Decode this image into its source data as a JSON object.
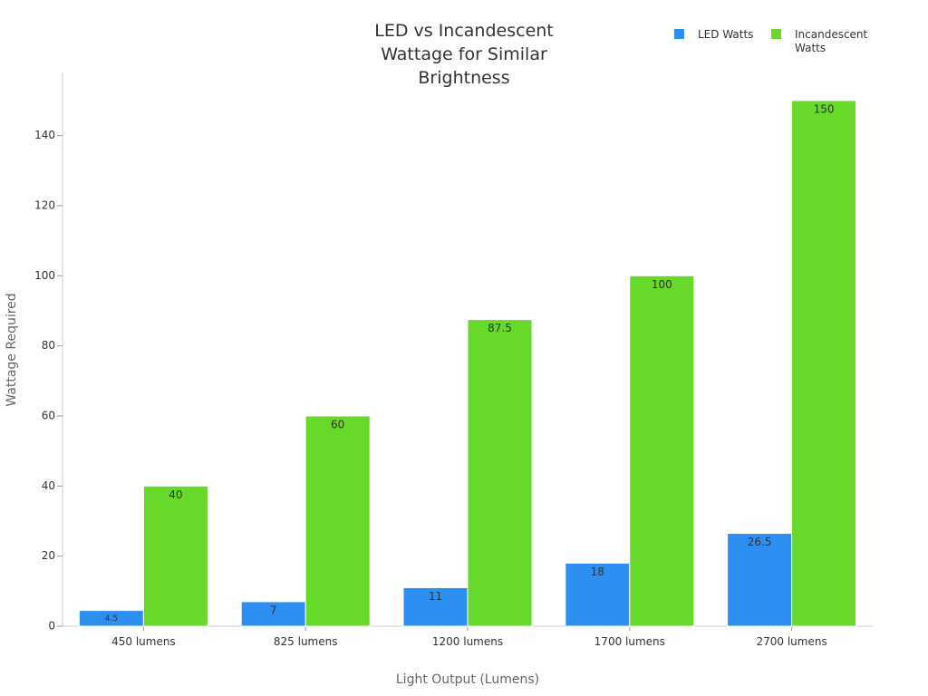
{
  "chart_data": {
    "type": "bar",
    "title": "LED vs Incandescent Wattage for Similar Brightness",
    "x_label": "Light Output (Lumens)",
    "y_label": "Wattage Required",
    "categories": [
      "450 lumens",
      "825 lumens",
      "1200 lumens",
      "1700 lumens",
      "2700 lumens"
    ],
    "series": [
      {
        "name": "LED Watts",
        "color": "#2d8ff0",
        "values": [
          4.5,
          7,
          11,
          18,
          26.5
        ]
      },
      {
        "name": "Incandescent Watts",
        "color": "#66d92a",
        "values": [
          40,
          60,
          87.5,
          100,
          150
        ]
      }
    ],
    "ylim": [
      0,
      158
    ],
    "yticks": [
      0,
      20,
      40,
      60,
      80,
      100,
      120,
      140
    ],
    "legend": "top-right"
  }
}
